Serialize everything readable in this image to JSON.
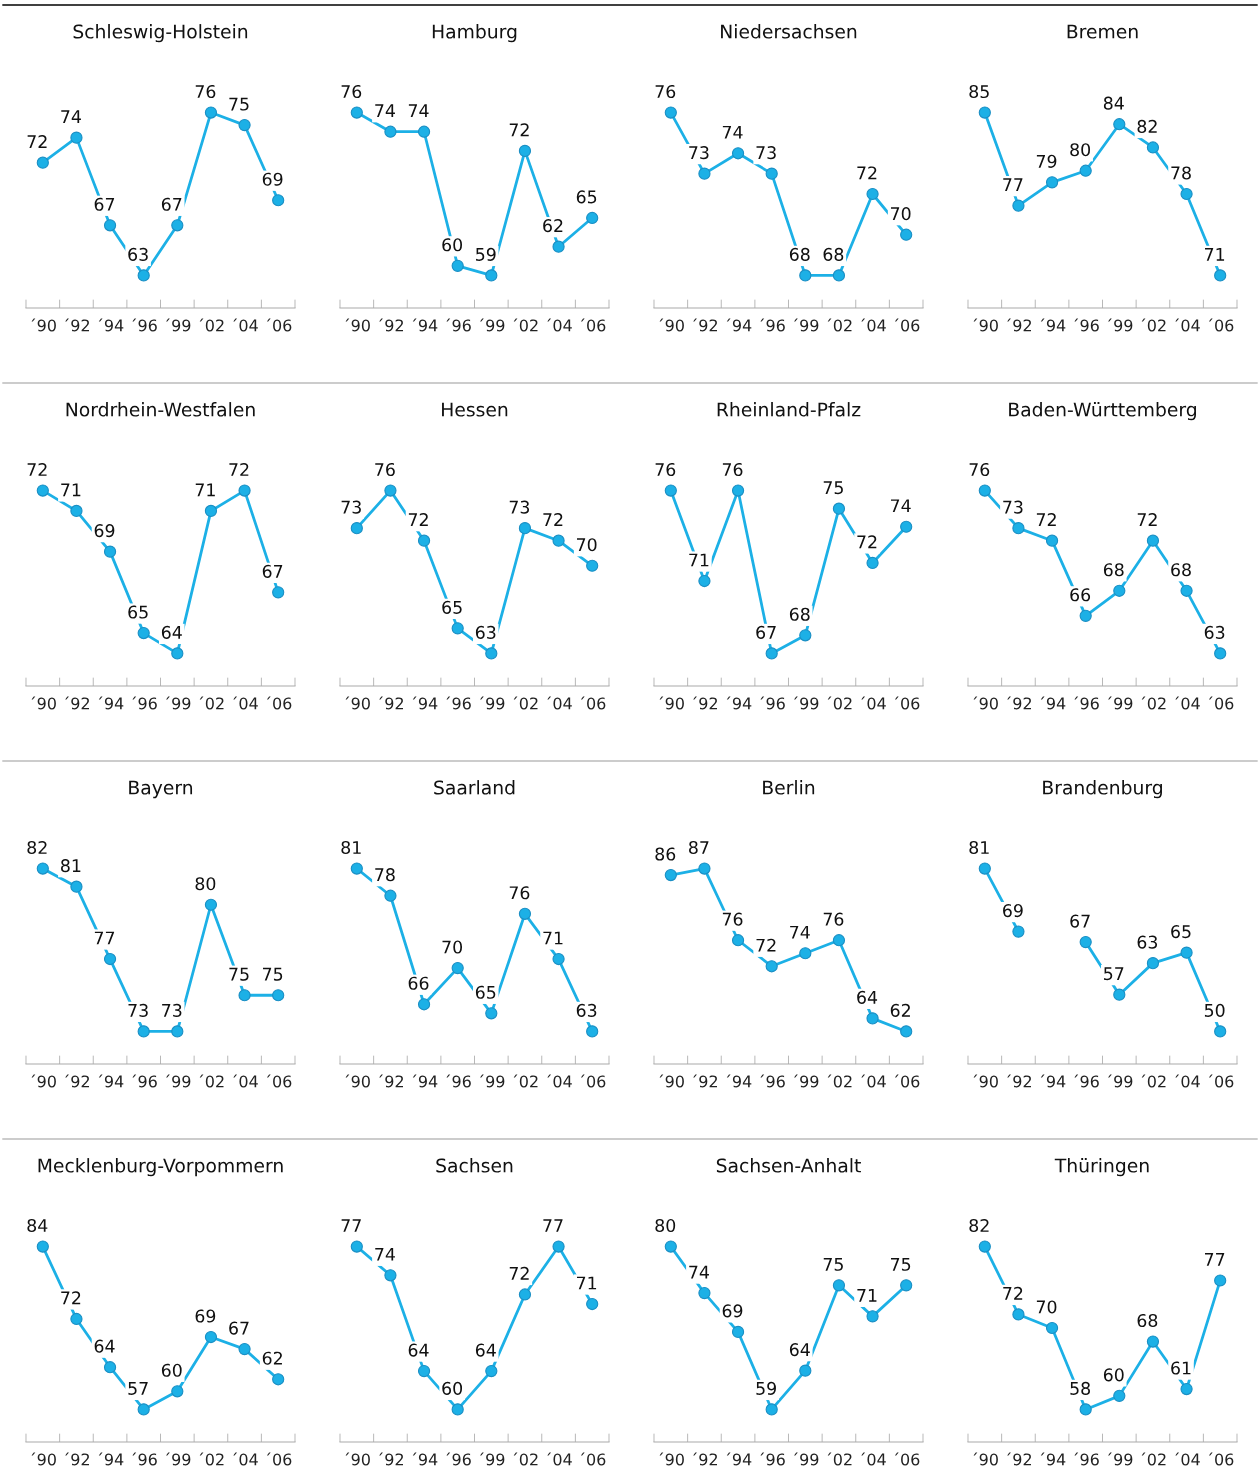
{
  "chart_data": [
    {
      "type": "line",
      "title": "Schleswig-Holstein",
      "categories": [
        "´90",
        "´92",
        "´94",
        "´96",
        "´99",
        "´02",
        "´04",
        "´06"
      ],
      "values": [
        72,
        74,
        67,
        63,
        67,
        76,
        75,
        69
      ],
      "color": "#1cb0e6",
      "data_labels": true,
      "marker": "circle"
    },
    {
      "type": "line",
      "title": "Hamburg",
      "categories": [
        "´90",
        "´92",
        "´94",
        "´96",
        "´99",
        "´02",
        "´04",
        "´06"
      ],
      "values": [
        76,
        74,
        74,
        60,
        59,
        72,
        62,
        65
      ],
      "color": "#1cb0e6",
      "data_labels": true,
      "marker": "circle"
    },
    {
      "type": "line",
      "title": "Niedersachsen",
      "categories": [
        "´90",
        "´92",
        "´94",
        "´96",
        "´99",
        "´02",
        "´04",
        "´06"
      ],
      "values": [
        76,
        73,
        74,
        73,
        68,
        68,
        72,
        70
      ],
      "color": "#1cb0e6",
      "data_labels": true,
      "marker": "circle"
    },
    {
      "type": "line",
      "title": "Bremen",
      "categories": [
        "´90",
        "´92",
        "´94",
        "´96",
        "´99",
        "´02",
        "´04",
        "´06"
      ],
      "values": [
        85,
        77,
        79,
        80,
        84,
        82,
        78,
        71
      ],
      "color": "#1cb0e6",
      "data_labels": true,
      "marker": "circle"
    },
    {
      "type": "line",
      "title": "Nordrhein-Westfalen",
      "categories": [
        "´90",
        "´92",
        "´94",
        "´96",
        "´99",
        "´02",
        "´04",
        "´06"
      ],
      "values": [
        72,
        71,
        69,
        65,
        64,
        71,
        72,
        67
      ],
      "color": "#1cb0e6",
      "data_labels": true,
      "marker": "circle"
    },
    {
      "type": "line",
      "title": "Hessen",
      "categories": [
        "´90",
        "´92",
        "´94",
        "´96",
        "´99",
        "´02",
        "´04",
        "´06"
      ],
      "values": [
        73,
        76,
        72,
        65,
        63,
        73,
        72,
        70
      ],
      "color": "#1cb0e6",
      "data_labels": true,
      "marker": "circle"
    },
    {
      "type": "line",
      "title": "Rheinland-Pfalz",
      "categories": [
        "´90",
        "´92",
        "´94",
        "´96",
        "´99",
        "´02",
        "´04",
        "´06"
      ],
      "values": [
        76,
        71,
        76,
        67,
        68,
        75,
        72,
        74
      ],
      "color": "#1cb0e6",
      "data_labels": true,
      "marker": "circle"
    },
    {
      "type": "line",
      "title": "Baden-Württemberg",
      "categories": [
        "´90",
        "´92",
        "´94",
        "´96",
        "´99",
        "´02",
        "´04",
        "´06"
      ],
      "values": [
        76,
        73,
        72,
        66,
        68,
        72,
        68,
        63
      ],
      "color": "#1cb0e6",
      "data_labels": true,
      "marker": "circle"
    },
    {
      "type": "line",
      "title": "Bayern",
      "categories": [
        "´90",
        "´92",
        "´94",
        "´96",
        "´99",
        "´02",
        "´04",
        "´06"
      ],
      "values": [
        82,
        81,
        77,
        73,
        73,
        80,
        75,
        75
      ],
      "color": "#1cb0e6",
      "data_labels": true,
      "marker": "circle"
    },
    {
      "type": "line",
      "title": "Saarland",
      "categories": [
        "´90",
        "´92",
        "´94",
        "´96",
        "´99",
        "´02",
        "´04",
        "´06"
      ],
      "values": [
        81,
        78,
        66,
        70,
        65,
        76,
        71,
        63
      ],
      "color": "#1cb0e6",
      "data_labels": true,
      "marker": "circle"
    },
    {
      "type": "line",
      "title": "Berlin",
      "categories": [
        "´90",
        "´92",
        "´94",
        "´96",
        "´99",
        "´02",
        "´04",
        "´06"
      ],
      "values": [
        86,
        87,
        76,
        72,
        74,
        76,
        64,
        62
      ],
      "color": "#1cb0e6",
      "data_labels": true,
      "marker": "circle"
    },
    {
      "type": "line",
      "title": "Brandenburg",
      "categories": [
        "´90",
        "´92",
        "´94",
        "´96",
        "´99",
        "´02",
        "´04",
        "´06"
      ],
      "values": [
        81,
        69,
        null,
        67,
        57,
        63,
        65,
        50
      ],
      "color": "#1cb0e6",
      "data_labels": true,
      "marker": "circle"
    },
    {
      "type": "line",
      "title": "Mecklenburg-Vorpommern",
      "categories": [
        "´90",
        "´92",
        "´94",
        "´96",
        "´99",
        "´02",
        "´04",
        "´06"
      ],
      "values": [
        84,
        72,
        64,
        57,
        60,
        69,
        67,
        62
      ],
      "color": "#1cb0e6",
      "data_labels": true,
      "marker": "circle"
    },
    {
      "type": "line",
      "title": "Sachsen",
      "categories": [
        "´90",
        "´92",
        "´94",
        "´96",
        "´99",
        "´02",
        "´04",
        "´06"
      ],
      "values": [
        77,
        74,
        64,
        60,
        64,
        72,
        77,
        71
      ],
      "color": "#1cb0e6",
      "data_labels": true,
      "marker": "circle"
    },
    {
      "type": "line",
      "title": "Sachsen-Anhalt",
      "categories": [
        "´90",
        "´92",
        "´94",
        "´96",
        "´99",
        "´02",
        "´04",
        "´06"
      ],
      "values": [
        80,
        74,
        69,
        59,
        64,
        75,
        71,
        75
      ],
      "color": "#1cb0e6",
      "data_labels": true,
      "marker": "circle"
    },
    {
      "type": "line",
      "title": "Thüringen",
      "categories": [
        "´90",
        "´92",
        "´94",
        "´96",
        "´99",
        "´02",
        "´04",
        "´06"
      ],
      "values": [
        82,
        72,
        70,
        58,
        60,
        68,
        61,
        77
      ],
      "color": "#1cb0e6",
      "data_labels": true,
      "marker": "circle"
    }
  ]
}
